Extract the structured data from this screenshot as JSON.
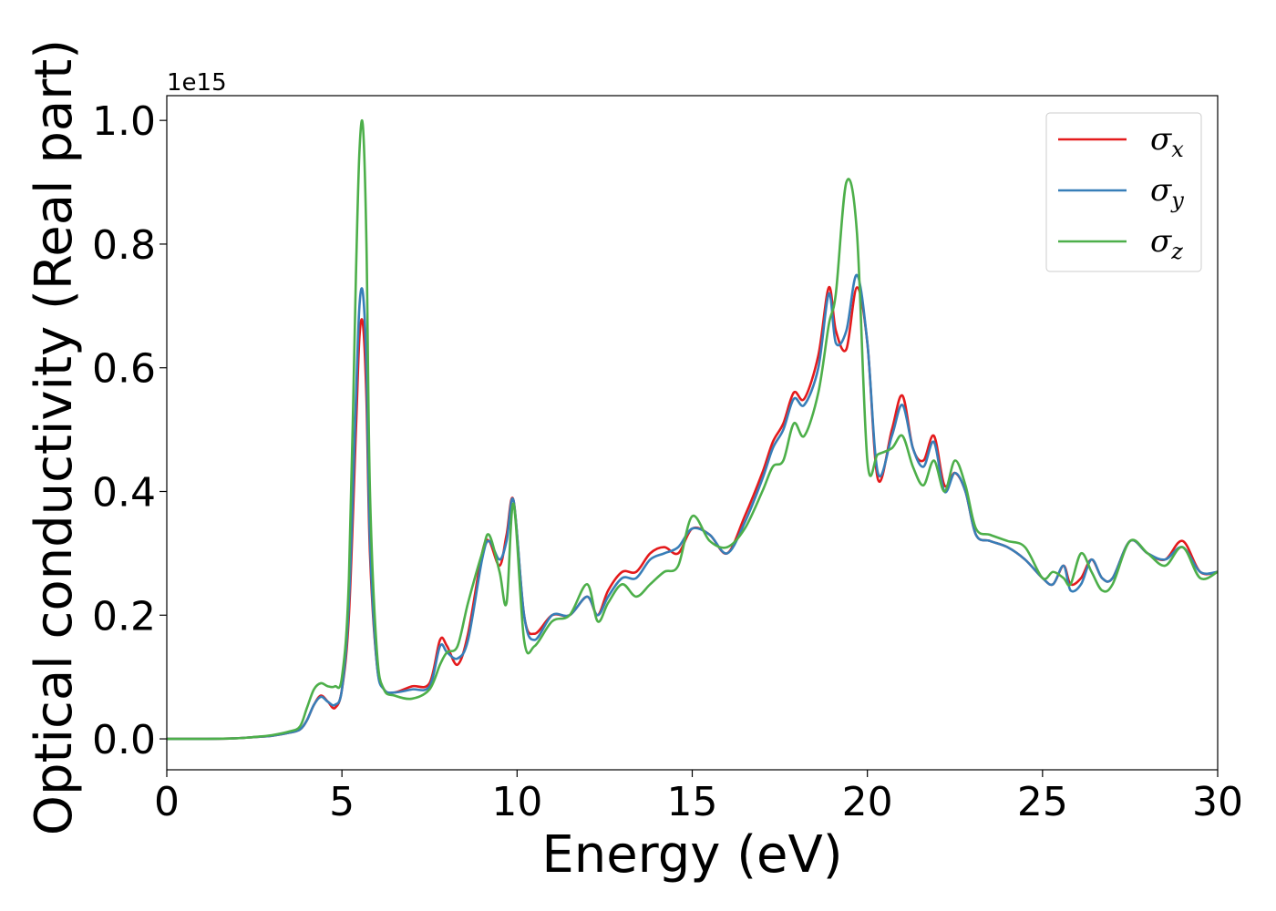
{
  "chart_data": {
    "type": "line",
    "xlabel": "Energy (eV)",
    "ylabel": "Optical conductivity (Real part)",
    "y_offset_text": "1e15",
    "xlim": [
      0,
      30
    ],
    "ylim": [
      -0.05,
      1.04
    ],
    "xticks": [
      0,
      5,
      10,
      15,
      20,
      25,
      30
    ],
    "yticks": [
      0.0,
      0.2,
      0.4,
      0.6,
      0.8,
      1.0
    ],
    "xtick_labels": [
      "0",
      "5",
      "10",
      "15",
      "20",
      "25",
      "30"
    ],
    "ytick_labels": [
      "0.0",
      "0.2",
      "0.4",
      "0.6",
      "0.8",
      "1.0"
    ],
    "grid": false,
    "legend_position": "top-right",
    "series": [
      {
        "name": "σx",
        "symbol": "σ",
        "subscript": "x",
        "color": "#e41a1c",
        "x": [
          0,
          1,
          2,
          2.5,
          3,
          3.5,
          3.8,
          4.0,
          4.2,
          4.4,
          4.6,
          4.8,
          5.0,
          5.2,
          5.4,
          5.5,
          5.6,
          5.7,
          5.8,
          6.0,
          6.2,
          6.5,
          7.0,
          7.5,
          7.8,
          8.0,
          8.3,
          8.6,
          9.0,
          9.2,
          9.5,
          9.7,
          9.9,
          10.2,
          10.5,
          11.0,
          11.5,
          12.0,
          12.3,
          12.6,
          13.0,
          13.4,
          13.8,
          14.2,
          14.6,
          15.0,
          15.5,
          16.0,
          16.5,
          17.0,
          17.3,
          17.6,
          17.9,
          18.2,
          18.6,
          18.9,
          19.1,
          19.4,
          19.7,
          20.0,
          20.3,
          20.7,
          21.0,
          21.3,
          21.6,
          21.9,
          22.2,
          22.5,
          22.8,
          23.1,
          23.5,
          24.0,
          24.5,
          25.0,
          25.3,
          25.6,
          25.8,
          26.1,
          26.4,
          26.7,
          27.0,
          27.5,
          28.0,
          28.5,
          29.0,
          29.5,
          30.0
        ],
        "values": [
          0,
          0,
          0.001,
          0.003,
          0.005,
          0.01,
          0.015,
          0.03,
          0.055,
          0.07,
          0.06,
          0.05,
          0.08,
          0.2,
          0.5,
          0.65,
          0.67,
          0.55,
          0.3,
          0.12,
          0.08,
          0.075,
          0.085,
          0.09,
          0.16,
          0.15,
          0.12,
          0.17,
          0.3,
          0.32,
          0.28,
          0.33,
          0.385,
          0.2,
          0.17,
          0.2,
          0.2,
          0.23,
          0.2,
          0.24,
          0.27,
          0.27,
          0.3,
          0.31,
          0.3,
          0.34,
          0.33,
          0.3,
          0.36,
          0.43,
          0.48,
          0.51,
          0.56,
          0.55,
          0.62,
          0.73,
          0.66,
          0.63,
          0.73,
          0.64,
          0.42,
          0.5,
          0.555,
          0.47,
          0.45,
          0.49,
          0.41,
          0.43,
          0.4,
          0.33,
          0.32,
          0.31,
          0.29,
          0.26,
          0.25,
          0.28,
          0.25,
          0.26,
          0.29,
          0.26,
          0.26,
          0.32,
          0.3,
          0.29,
          0.32,
          0.27,
          0.27
        ]
      },
      {
        "name": "σy",
        "symbol": "σ",
        "subscript": "y",
        "color": "#377eb8",
        "x": [
          0,
          1,
          2,
          2.5,
          3,
          3.5,
          3.8,
          4.0,
          4.2,
          4.4,
          4.6,
          4.8,
          5.0,
          5.2,
          5.4,
          5.5,
          5.6,
          5.7,
          5.8,
          6.0,
          6.2,
          6.5,
          7.0,
          7.5,
          7.8,
          8.0,
          8.3,
          8.6,
          9.0,
          9.2,
          9.5,
          9.7,
          9.9,
          10.2,
          10.5,
          11.0,
          11.5,
          12.0,
          12.3,
          12.6,
          13.0,
          13.4,
          13.8,
          14.2,
          14.6,
          15.0,
          15.5,
          16.0,
          16.5,
          17.0,
          17.3,
          17.6,
          17.9,
          18.2,
          18.6,
          18.9,
          19.1,
          19.4,
          19.7,
          20.0,
          20.3,
          20.7,
          21.0,
          21.3,
          21.6,
          21.9,
          22.2,
          22.5,
          22.8,
          23.1,
          23.5,
          24.0,
          24.5,
          25.0,
          25.3,
          25.6,
          25.8,
          26.1,
          26.4,
          26.7,
          27.0,
          27.5,
          28.0,
          28.5,
          29.0,
          29.5,
          30.0
        ],
        "values": [
          0,
          0,
          0.001,
          0.003,
          0.005,
          0.01,
          0.015,
          0.03,
          0.055,
          0.068,
          0.06,
          0.055,
          0.08,
          0.22,
          0.55,
          0.7,
          0.72,
          0.6,
          0.32,
          0.12,
          0.08,
          0.075,
          0.08,
          0.085,
          0.15,
          0.14,
          0.13,
          0.16,
          0.29,
          0.32,
          0.29,
          0.32,
          0.385,
          0.2,
          0.16,
          0.2,
          0.2,
          0.23,
          0.2,
          0.23,
          0.26,
          0.26,
          0.29,
          0.3,
          0.31,
          0.34,
          0.33,
          0.3,
          0.35,
          0.42,
          0.47,
          0.5,
          0.55,
          0.54,
          0.6,
          0.72,
          0.64,
          0.66,
          0.75,
          0.64,
          0.43,
          0.49,
          0.54,
          0.47,
          0.44,
          0.48,
          0.4,
          0.43,
          0.4,
          0.33,
          0.32,
          0.31,
          0.29,
          0.26,
          0.25,
          0.28,
          0.24,
          0.25,
          0.29,
          0.26,
          0.26,
          0.32,
          0.3,
          0.29,
          0.31,
          0.27,
          0.27
        ]
      },
      {
        "name": "σz",
        "symbol": "σ",
        "subscript": "z",
        "color": "#4daf4a",
        "x": [
          0,
          1,
          2,
          2.5,
          3,
          3.5,
          3.8,
          4.0,
          4.2,
          4.4,
          4.6,
          4.8,
          5.0,
          5.2,
          5.4,
          5.5,
          5.6,
          5.7,
          5.8,
          6.0,
          6.2,
          6.5,
          7.0,
          7.5,
          7.8,
          8.0,
          8.3,
          8.6,
          9.0,
          9.2,
          9.5,
          9.7,
          9.9,
          10.2,
          10.5,
          11.0,
          11.5,
          12.0,
          12.3,
          12.6,
          13.0,
          13.4,
          13.8,
          14.2,
          14.6,
          15.0,
          15.5,
          16.0,
          16.5,
          17.0,
          17.3,
          17.6,
          17.9,
          18.2,
          18.6,
          18.9,
          19.1,
          19.4,
          19.7,
          20.0,
          20.3,
          20.7,
          21.0,
          21.3,
          21.6,
          21.9,
          22.2,
          22.5,
          22.8,
          23.1,
          23.5,
          24.0,
          24.5,
          25.0,
          25.3,
          25.6,
          25.8,
          26.1,
          26.4,
          26.7,
          27.0,
          27.5,
          28.0,
          28.5,
          29.0,
          29.5,
          30.0
        ],
        "values": [
          0,
          0,
          0.001,
          0.003,
          0.006,
          0.012,
          0.02,
          0.05,
          0.08,
          0.09,
          0.085,
          0.085,
          0.1,
          0.26,
          0.75,
          0.95,
          0.99,
          0.8,
          0.4,
          0.14,
          0.08,
          0.07,
          0.065,
          0.08,
          0.12,
          0.14,
          0.15,
          0.22,
          0.3,
          0.33,
          0.27,
          0.22,
          0.38,
          0.16,
          0.15,
          0.19,
          0.2,
          0.25,
          0.19,
          0.22,
          0.25,
          0.23,
          0.25,
          0.27,
          0.28,
          0.36,
          0.32,
          0.31,
          0.34,
          0.4,
          0.44,
          0.45,
          0.51,
          0.49,
          0.56,
          0.67,
          0.72,
          0.9,
          0.82,
          0.45,
          0.46,
          0.47,
          0.49,
          0.44,
          0.41,
          0.45,
          0.4,
          0.45,
          0.41,
          0.34,
          0.33,
          0.32,
          0.31,
          0.26,
          0.27,
          0.26,
          0.25,
          0.3,
          0.27,
          0.24,
          0.25,
          0.32,
          0.3,
          0.28,
          0.31,
          0.26,
          0.27
        ]
      }
    ]
  }
}
